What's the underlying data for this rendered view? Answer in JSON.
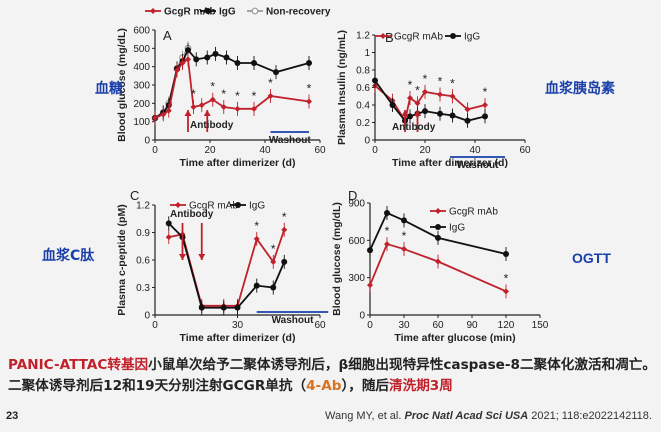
{
  "colors": {
    "gcgr": "#c0212b",
    "igg": "#111111",
    "nonrec": "#9a9a9a",
    "washout": "#1a3fa8",
    "label_blue": "#1a3fa8"
  },
  "side_labels": {
    "a": "血糖",
    "b": "血浆胰岛素",
    "c": "血浆C肽",
    "d": "OGTT"
  },
  "caption": {
    "p1": "PANIC-ATTAC转基因",
    "p2": "小鼠单次给予二聚体诱导剂后，β细胞出现特异性caspase-8二聚体化激活和凋亡。二聚体诱导剂后12和19天分别注射GCGR单抗（",
    "p3": "4-Ab",
    "p4": "），随后",
    "p5": "清洗期3周"
  },
  "citation": {
    "authors": "Wang MY, et al. ",
    "journal": "Proc Natl Acad Sci USA",
    "rest": " 2021; 118:e2022142118."
  },
  "page_number": "23",
  "chart_data": [
    {
      "type": "line",
      "panel": "A",
      "ylabel": "Blood glucose (mg/dL)",
      "xlabel": "Time after dimerizer (d)",
      "xlim": [
        0,
        60
      ],
      "ylim": [
        0,
        600
      ],
      "xticks": [
        0,
        20,
        40,
        60
      ],
      "yticks": [
        0,
        100,
        200,
        300,
        400,
        500,
        600
      ],
      "legend": [
        "GcgR mAb",
        "IgG",
        "Non-recovery"
      ],
      "annotations": {
        "antibody": "Antibody",
        "washout": "Washout",
        "star": "*"
      },
      "series": [
        {
          "name": "Non-recovery",
          "x": [
            0,
            3,
            5,
            8,
            10,
            12
          ],
          "y": [
            120,
            150,
            200,
            390,
            450,
            500
          ]
        },
        {
          "name": "IgG",
          "x": [
            0,
            3,
            5,
            8,
            10,
            12,
            15,
            19,
            22,
            26,
            30,
            36,
            44,
            56
          ],
          "y": [
            120,
            150,
            190,
            390,
            430,
            490,
            440,
            450,
            470,
            450,
            420,
            420,
            370,
            420
          ]
        },
        {
          "name": "GcgR mAb",
          "x": [
            0,
            3,
            5,
            8,
            10,
            12,
            14,
            17,
            21,
            25,
            30,
            36,
            42,
            56
          ],
          "y": [
            120,
            140,
            160,
            380,
            420,
            440,
            180,
            190,
            220,
            180,
            170,
            170,
            240,
            210
          ]
        }
      ],
      "stars_x": [
        14,
        21,
        25,
        30,
        36,
        42,
        56
      ]
    },
    {
      "type": "line",
      "panel": "B",
      "ylabel": "Plasma Insulin (ng/mL)",
      "xlabel": "Time after dimerizer (d)",
      "xlim": [
        0,
        60
      ],
      "ylim": [
        0,
        1.2
      ],
      "xticks": [
        0,
        20,
        40,
        60
      ],
      "yticks": [
        0,
        0.2,
        0.4,
        0.6,
        0.8,
        1.0,
        1.2
      ],
      "ytick_labels": [
        "0",
        "0.2",
        "0.4",
        "0.6",
        "0.8",
        "1",
        "1.2"
      ],
      "legend": [
        "GcgR mAb",
        "IgG"
      ],
      "annotations": {
        "antibody": "Antibody",
        "washout": "Washout",
        "star": "*"
      },
      "series": [
        {
          "name": "GcgR mAb",
          "x": [
            0,
            7,
            12,
            14,
            17,
            20,
            26,
            31,
            37,
            44
          ],
          "y": [
            0.62,
            0.45,
            0.22,
            0.48,
            0.42,
            0.55,
            0.52,
            0.5,
            0.35,
            0.4
          ]
        },
        {
          "name": "IgG",
          "x": [
            0,
            7,
            12,
            14,
            17,
            20,
            26,
            31,
            37,
            44
          ],
          "y": [
            0.68,
            0.4,
            0.22,
            0.27,
            0.3,
            0.33,
            0.3,
            0.28,
            0.22,
            0.27
          ]
        }
      ],
      "stars_x": [
        14,
        17,
        20,
        26,
        31,
        44
      ]
    },
    {
      "type": "line",
      "panel": "C",
      "ylabel": "Plasma c-peptide (pM)",
      "xlabel": "Time after dimerizer (d)",
      "xlim": [
        0,
        60
      ],
      "ylim": [
        0,
        1.2
      ],
      "xticks": [
        0,
        30,
        60
      ],
      "yticks": [
        0,
        0.3,
        0.6,
        0.9,
        1.2
      ],
      "legend": [
        "GcgR mAb",
        "IgG"
      ],
      "annotations": {
        "antibody": "Antibody",
        "washout": "Washout",
        "star": "*"
      },
      "series": [
        {
          "name": "GcgR mAb",
          "x": [
            5,
            10,
            17,
            25,
            30,
            37,
            43,
            47
          ],
          "y": [
            0.85,
            0.88,
            0.1,
            0.1,
            0.1,
            0.83,
            0.58,
            0.93
          ]
        },
        {
          "name": "IgG",
          "x": [
            5,
            10,
            17,
            25,
            30,
            37,
            43,
            47
          ],
          "y": [
            1.0,
            0.85,
            0.08,
            0.08,
            0.08,
            0.32,
            0.3,
            0.58
          ]
        }
      ],
      "stars_x": [
        37,
        43,
        47
      ]
    },
    {
      "type": "line",
      "panel": "D",
      "ylabel": "Blood glucose (mg/dL)",
      "xlabel": "Time after glucose (min)",
      "xlim": [
        0,
        150
      ],
      "ylim": [
        0,
        900
      ],
      "xticks": [
        0,
        30,
        60,
        90,
        120,
        150
      ],
      "yticks": [
        0,
        300,
        600,
        900
      ],
      "legend": [
        "GcgR mAb",
        "IgG"
      ],
      "annotations": {
        "star": "*"
      },
      "series": [
        {
          "name": "IgG",
          "x": [
            0,
            15,
            30,
            60,
            120
          ],
          "y": [
            520,
            820,
            760,
            620,
            490
          ]
        },
        {
          "name": "GcgR mAb",
          "x": [
            0,
            15,
            30,
            60,
            120
          ],
          "y": [
            240,
            570,
            530,
            430,
            190
          ]
        }
      ],
      "stars_x": [
        15,
        30,
        120
      ]
    }
  ]
}
